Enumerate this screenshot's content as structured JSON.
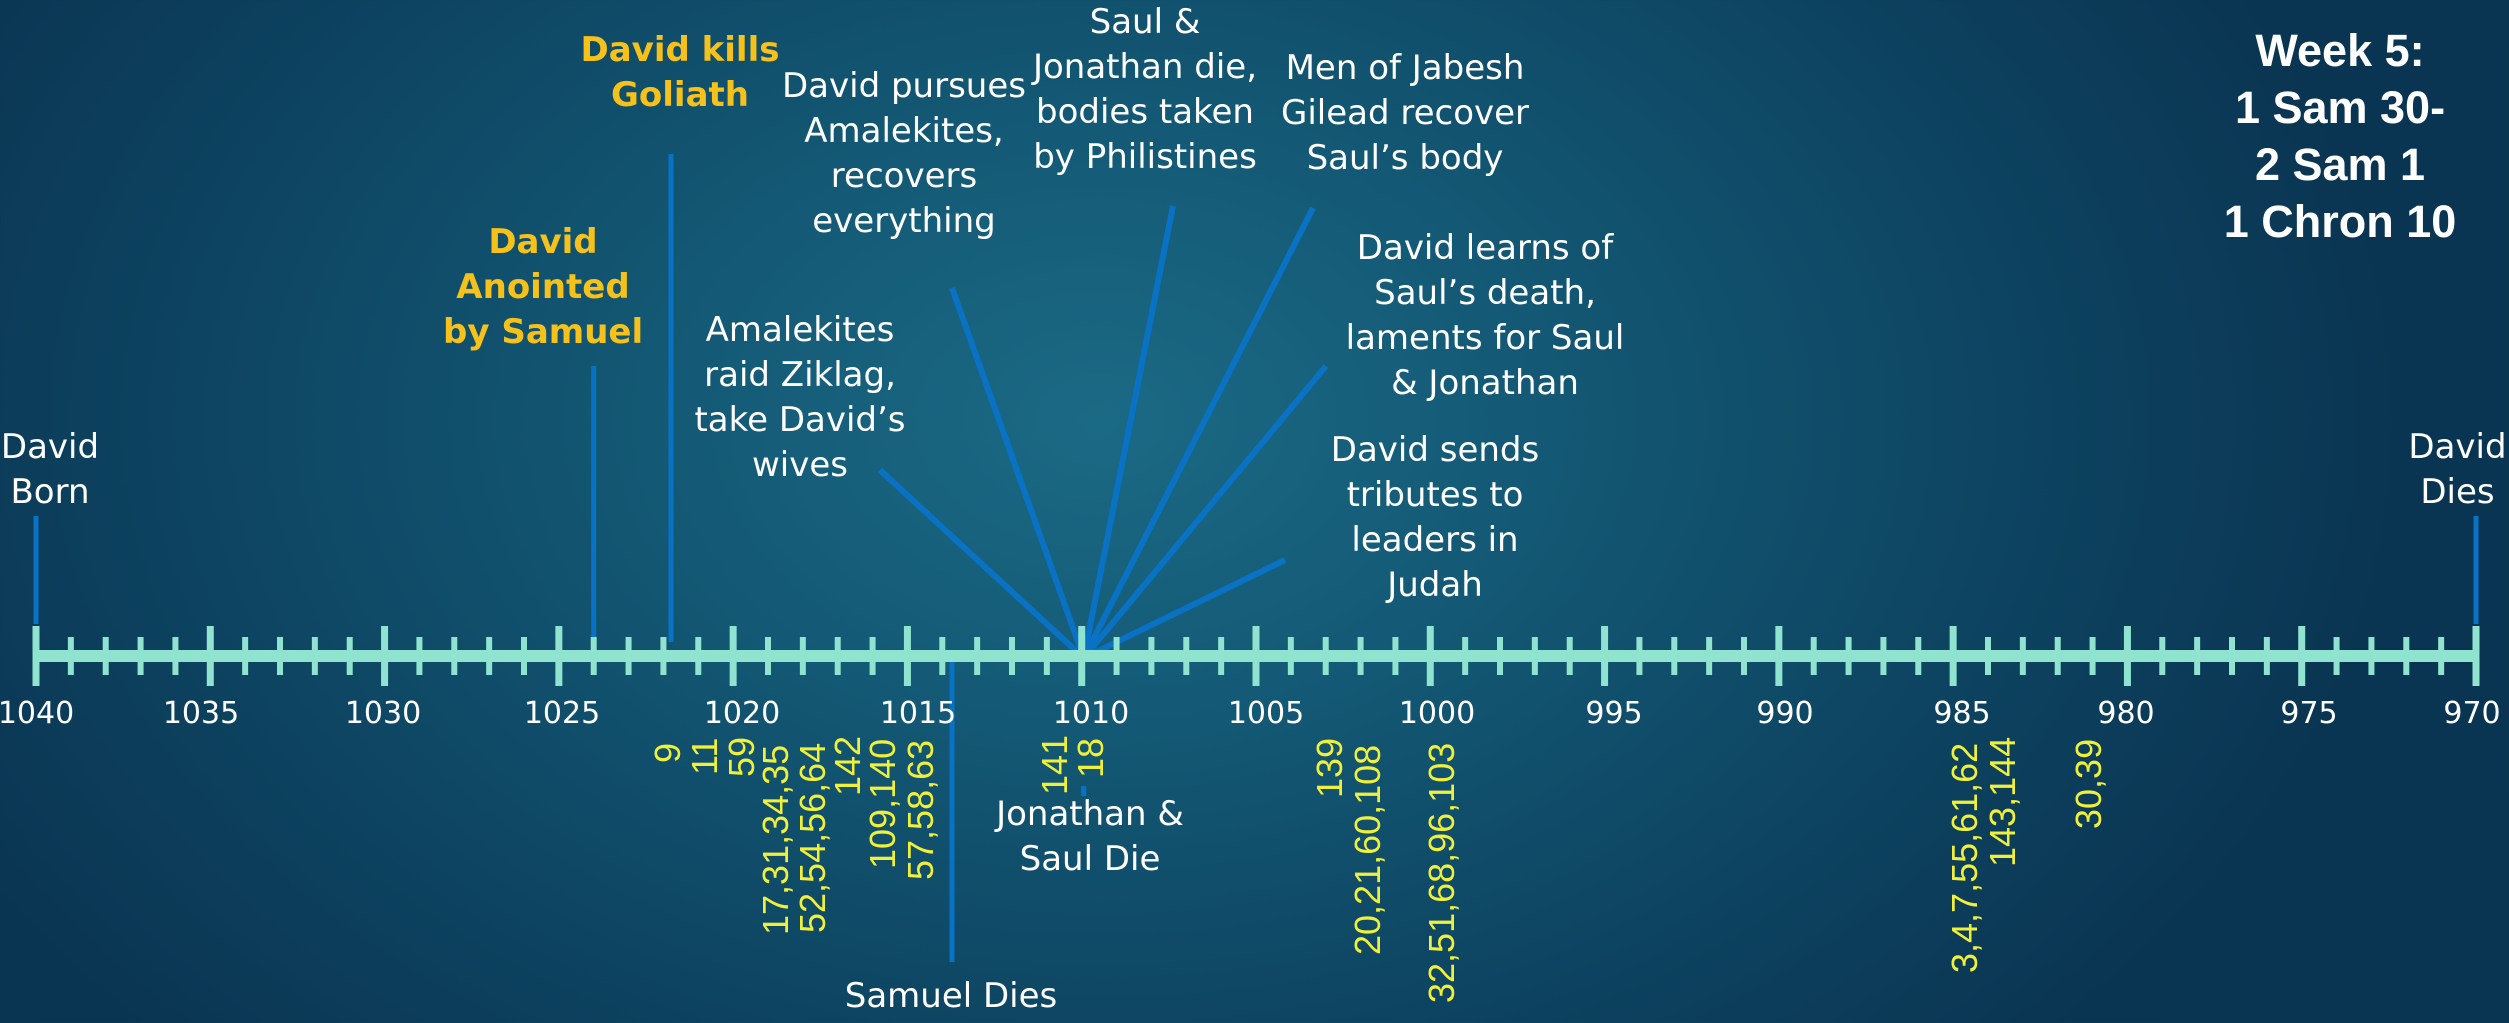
{
  "title": "Week 5:\n1 Sam 30-\n2 Sam 1\n1 Chron 10",
  "colors": {
    "axis": "#8fe3cf",
    "marker": "#0a72c4",
    "highlight": "#f5c11a",
    "psalm": "#f0f03a",
    "text": "#ffffff"
  },
  "axis": {
    "start_year": 1040,
    "end_year": 970,
    "labels": [
      "1040",
      "1035",
      "1030",
      "1025",
      "1020",
      "1015",
      "1010",
      "1005",
      "1000",
      "995",
      "990",
      "985",
      "980",
      "975",
      "970"
    ]
  },
  "events_above": [
    {
      "text": "David\nBorn",
      "year": 1040,
      "highlight": false
    },
    {
      "text": "David\nAnointed\nby Samuel",
      "year": 1024,
      "highlight": true
    },
    {
      "text": "David kills\nGoliath",
      "year": 1022,
      "highlight": true
    },
    {
      "text": "Amalekites\nraid Ziklag,\ntake David’s\nwives",
      "year": 1010,
      "highlight": false
    },
    {
      "text": "David pursues\nAmalekites,\nrecovers\neverything",
      "year": 1010,
      "highlight": false
    },
    {
      "text": "Saul &\nJonathan die,\nbodies taken\nby Philistines",
      "year": 1010,
      "highlight": false
    },
    {
      "text": "Men of Jabesh\nGilead recover\nSaul’s body",
      "year": 1010,
      "highlight": false
    },
    {
      "text": "David learns of\nSaul’s death,\nlaments for Saul\n& Jonathan",
      "year": 1010,
      "highlight": false
    },
    {
      "text": "David sends\ntributes to\nleaders in\nJudah",
      "year": 1010,
      "highlight": false
    },
    {
      "text": "David\nDies",
      "year": 970,
      "highlight": false
    }
  ],
  "events_below": [
    {
      "text": "Samuel Dies",
      "year": 1014
    },
    {
      "text": "Jonathan &\nSaul Die",
      "year": 1010
    }
  ],
  "psalms": [
    "9",
    "11",
    "59",
    "17,31,34,35",
    "52,54,56,64",
    "142",
    "109,140",
    "57,58,63",
    "141",
    "18",
    "139",
    "20,21,60,108",
    "32,51,68,96,103",
    "3,4,7,55,61,62",
    "143,144",
    "30,39"
  ]
}
